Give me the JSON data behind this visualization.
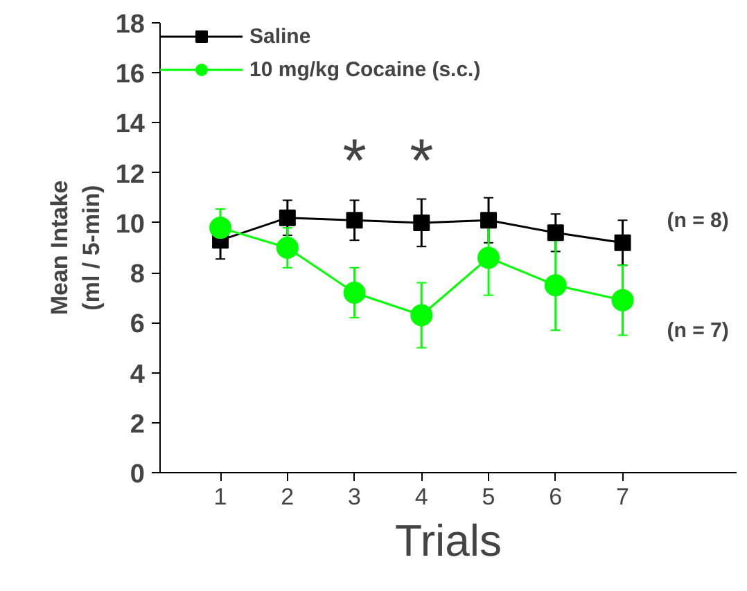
{
  "chart_data": {
    "type": "line",
    "xlabel": "Trials",
    "ylabel": "Mean Intake\n(ml / 5-min)",
    "x": [
      1,
      2,
      3,
      4,
      5,
      6,
      7
    ],
    "xlim": [
      0.1,
      8.7
    ],
    "xticks": [
      1,
      2,
      3,
      4,
      5,
      6,
      7
    ],
    "ylim": [
      0,
      18
    ],
    "yticks": [
      0,
      2,
      4,
      6,
      8,
      10,
      12,
      14,
      16,
      18
    ],
    "series": [
      {
        "name": "Saline",
        "color": "#000000",
        "marker": "square",
        "values": [
          9.3,
          10.2,
          10.1,
          10.0,
          10.1,
          9.6,
          9.2
        ],
        "errors": [
          0.75,
          0.7,
          0.8,
          0.95,
          0.9,
          0.75,
          0.9
        ]
      },
      {
        "name": "10 mg/kg Cocaine (s.c.)",
        "color": "#00ff00",
        "marker": "circle",
        "values": [
          9.8,
          9.0,
          7.2,
          6.3,
          8.6,
          7.5,
          6.9
        ],
        "errors": [
          0.75,
          0.8,
          1.0,
          1.3,
          1.5,
          1.8,
          1.4
        ]
      }
    ],
    "annotations": [
      "*",
      "*",
      "(n = 8)",
      "(n = 7)"
    ],
    "grid": false,
    "legend": "top left",
    "line_style": "solid"
  }
}
